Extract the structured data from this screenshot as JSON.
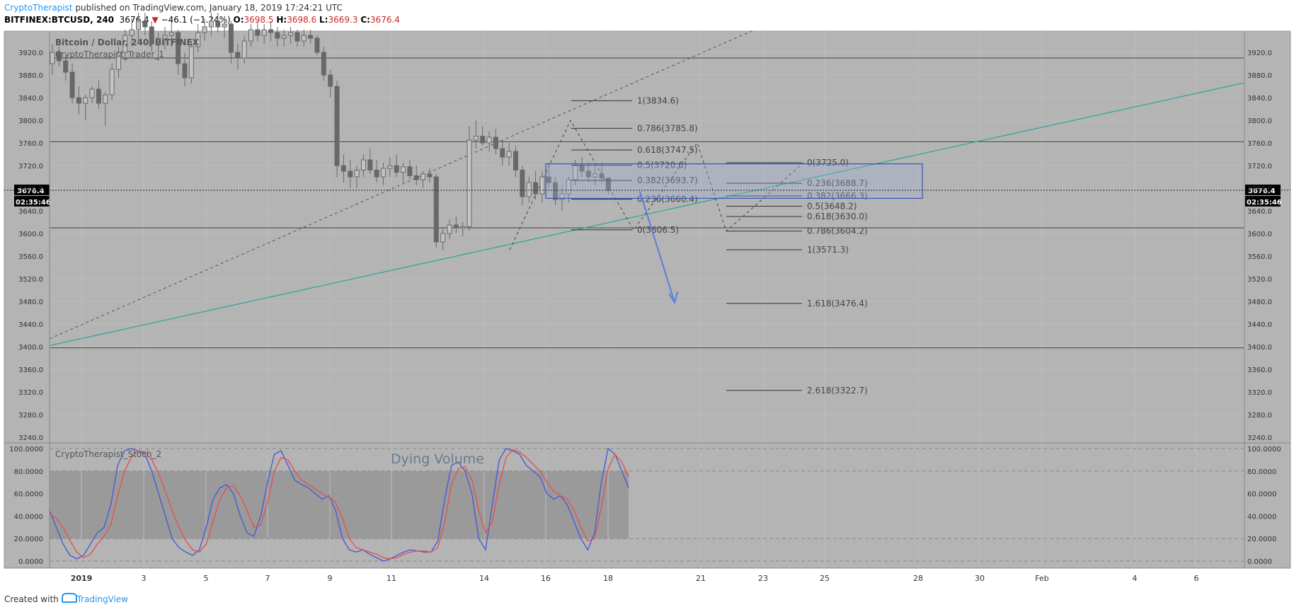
{
  "header": {
    "author": "CryptoTherapist",
    "published_text": "published on TradingView.com, January 18, 2019 17:24:21 UTC",
    "symbol": "BITFINEX:BTCUSD, 240",
    "last": "3676.4",
    "change_arrow": "▼",
    "change": "−46.1 (−1.24%)",
    "o_label": "O:",
    "o": "3698.5",
    "h_label": "H:",
    "h": "3698.6",
    "l_label": "L:",
    "l": "3669.3",
    "c_label": "C:",
    "c": "3676.4"
  },
  "footer": {
    "created_with": "Created with",
    "tradingview": "TradingView"
  },
  "colors": {
    "chart_bg": "#b4b4b4",
    "stoch_band": "#9a9a9a",
    "trendline": "#26a69a",
    "arrow": "#5b7fd6",
    "k_line": "#4a5bd6",
    "d_line": "#e05454",
    "candle": "#686868",
    "author_link": "#2196f3",
    "down": "#c62828"
  },
  "chart_data": [
    {
      "type": "candlestick",
      "title": "Bitcoin / Dollar, 240, BITFINEX",
      "indicator_label": "CryptoTherapist_Trader_1",
      "ylim": [
        3240,
        3960
      ],
      "y_ticks": [
        "3920.0",
        "3880.0",
        "3840.0",
        "3800.0",
        "3760.0",
        "3720.0",
        "3680.0",
        "3640.0",
        "3600.0",
        "3560.0",
        "3520.0",
        "3480.0",
        "3440.0",
        "3400.0",
        "3360.0",
        "3320.0",
        "3280.0",
        "3240.0"
      ],
      "x_ticks": [
        "2019",
        "3",
        "5",
        "7",
        "9",
        "11",
        "14",
        "16",
        "18",
        "21",
        "23",
        "25",
        "28",
        "30",
        "Feb",
        "4",
        "6"
      ],
      "last_price": "3676.4",
      "countdown": "02:35:46",
      "horizontal_levels": [
        3910,
        3762,
        3610,
        3398
      ],
      "fib_retracement_1": [
        {
          "level": "1",
          "value": "3834.6"
        },
        {
          "level": "0.786",
          "value": "3785.8"
        },
        {
          "level": "0.618",
          "value": "3747.5"
        },
        {
          "level": "0.5",
          "value": "3720.6"
        },
        {
          "level": "0.382",
          "value": "3693.7"
        },
        {
          "level": "0.236",
          "value": "3660.4"
        },
        {
          "level": "0",
          "value": "3606.5"
        }
      ],
      "fib_retracement_2": [
        {
          "level": "0",
          "value": "3725.0"
        },
        {
          "level": "0.236",
          "value": "3688.7"
        },
        {
          "level": "0.382",
          "value": "3666.3"
        },
        {
          "level": "0.5",
          "value": "3648.2"
        },
        {
          "level": "0.618",
          "value": "3630.0"
        },
        {
          "level": "0.786",
          "value": "3604.2"
        },
        {
          "level": "1",
          "value": "3571.3"
        },
        {
          "level": "1.618",
          "value": "3476.4"
        },
        {
          "level": "2.618",
          "value": "3322.7"
        }
      ],
      "candles": [
        [
          3900,
          3935,
          3880,
          3920
        ],
        [
          3920,
          3930,
          3895,
          3905
        ],
        [
          3905,
          3915,
          3870,
          3885
        ],
        [
          3885,
          3900,
          3830,
          3840
        ],
        [
          3840,
          3860,
          3810,
          3830
        ],
        [
          3830,
          3845,
          3800,
          3840
        ],
        [
          3840,
          3860,
          3830,
          3855
        ],
        [
          3855,
          3870,
          3820,
          3830
        ],
        [
          3830,
          3850,
          3790,
          3845
        ],
        [
          3845,
          3900,
          3835,
          3890
        ],
        [
          3890,
          3930,
          3875,
          3920
        ],
        [
          3920,
          3960,
          3905,
          3950
        ],
        [
          3950,
          3980,
          3930,
          3960
        ],
        [
          3960,
          3990,
          3940,
          3975
        ],
        [
          3975,
          3990,
          3950,
          3965
        ],
        [
          3965,
          3975,
          3920,
          3935
        ],
        [
          3935,
          3955,
          3905,
          3945
        ],
        [
          3945,
          3965,
          3925,
          3950
        ],
        [
          3950,
          3975,
          3930,
          3955
        ],
        [
          3955,
          3960,
          3880,
          3900
        ],
        [
          3900,
          3920,
          3860,
          3875
        ],
        [
          3875,
          3940,
          3865,
          3930
        ],
        [
          3930,
          3970,
          3920,
          3955
        ],
        [
          3955,
          3980,
          3940,
          3965
        ],
        [
          3965,
          3990,
          3950,
          3975
        ],
        [
          3975,
          3990,
          3955,
          3965
        ],
        [
          3965,
          3980,
          3945,
          3970
        ],
        [
          3970,
          3975,
          3900,
          3920
        ],
        [
          3920,
          3935,
          3890,
          3910
        ],
        [
          3910,
          3950,
          3900,
          3940
        ],
        [
          3940,
          3970,
          3930,
          3960
        ],
        [
          3960,
          3975,
          3940,
          3950
        ],
        [
          3950,
          3970,
          3935,
          3960
        ],
        [
          3960,
          3975,
          3940,
          3955
        ],
        [
          3955,
          3965,
          3930,
          3945
        ],
        [
          3945,
          3960,
          3930,
          3950
        ],
        [
          3950,
          3965,
          3935,
          3955
        ],
        [
          3955,
          3960,
          3930,
          3940
        ],
        [
          3940,
          3960,
          3930,
          3950
        ],
        [
          3950,
          3960,
          3935,
          3945
        ],
        [
          3945,
          3950,
          3915,
          3920
        ],
        [
          3920,
          3930,
          3870,
          3880
        ],
        [
          3880,
          3890,
          3840,
          3860
        ],
        [
          3860,
          3870,
          3700,
          3720
        ],
        [
          3720,
          3740,
          3690,
          3710
        ],
        [
          3710,
          3730,
          3680,
          3700
        ],
        [
          3700,
          3720,
          3680,
          3712
        ],
        [
          3712,
          3740,
          3700,
          3730
        ],
        [
          3730,
          3750,
          3705,
          3712
        ],
        [
          3712,
          3730,
          3690,
          3700
        ],
        [
          3700,
          3725,
          3685,
          3715
        ],
        [
          3715,
          3735,
          3700,
          3720
        ],
        [
          3720,
          3740,
          3700,
          3708
        ],
        [
          3708,
          3725,
          3690,
          3718
        ],
        [
          3718,
          3730,
          3695,
          3702
        ],
        [
          3702,
          3720,
          3685,
          3695
        ],
        [
          3695,
          3710,
          3680,
          3705
        ],
        [
          3705,
          3715,
          3690,
          3700
        ],
        [
          3700,
          3705,
          3575,
          3585
        ],
        [
          3585,
          3610,
          3570,
          3600
        ],
        [
          3600,
          3625,
          3590,
          3615
        ],
        [
          3615,
          3630,
          3600,
          3610
        ],
        [
          3610,
          3620,
          3595,
          3612
        ],
        [
          3612,
          3790,
          3605,
          3765
        ],
        [
          3765,
          3800,
          3750,
          3772
        ],
        [
          3772,
          3790,
          3755,
          3760
        ],
        [
          3760,
          3780,
          3745,
          3770
        ],
        [
          3770,
          3785,
          3740,
          3750
        ],
        [
          3750,
          3765,
          3720,
          3735
        ],
        [
          3735,
          3760,
          3720,
          3745
        ],
        [
          3745,
          3755,
          3700,
          3712
        ],
        [
          3712,
          3720,
          3650,
          3665
        ],
        [
          3665,
          3700,
          3655,
          3690
        ],
        [
          3690,
          3710,
          3660,
          3670
        ],
        [
          3670,
          3710,
          3655,
          3700
        ],
        [
          3700,
          3725,
          3680,
          3690
        ],
        [
          3690,
          3700,
          3650,
          3660
        ],
        [
          3660,
          3685,
          3640,
          3670
        ],
        [
          3670,
          3700,
          3655,
          3695
        ],
        [
          3695,
          3730,
          3685,
          3720
        ],
        [
          3720,
          3735,
          3700,
          3710
        ],
        [
          3710,
          3725,
          3690,
          3700
        ],
        [
          3700,
          3720,
          3685,
          3705
        ],
        [
          3705,
          3725,
          3690,
          3698
        ],
        [
          3698,
          3699,
          3669,
          3676
        ]
      ]
    },
    {
      "type": "line",
      "title": "CryptoTherapist_Stoch_2",
      "annotation": "Dying Volume",
      "ylim": [
        0,
        100
      ],
      "y_ticks": [
        "100.0000",
        "80.0000",
        "60.0000",
        "40.0000",
        "20.0000",
        "0.0000"
      ],
      "band": [
        20,
        80
      ],
      "series": [
        {
          "values": [
            45,
            30,
            15,
            5,
            2,
            5,
            15,
            25,
            30,
            50,
            85,
            98,
            100,
            98,
            95,
            80,
            60,
            40,
            20,
            12,
            8,
            5,
            10,
            30,
            55,
            65,
            68,
            60,
            40,
            25,
            22,
            40,
            70,
            95,
            98,
            85,
            72,
            68,
            65,
            60,
            55,
            58,
            45,
            20,
            10,
            8,
            10,
            6,
            3,
            0,
            2,
            5,
            8,
            10,
            9,
            8,
            8,
            18,
            55,
            85,
            88,
            80,
            60,
            20,
            10,
            50,
            90,
            100,
            98,
            95,
            85,
            80,
            75,
            60,
            55,
            58,
            50,
            35,
            20,
            10,
            25,
            70,
            100,
            95,
            80,
            65
          ]
        },
        {
          "values": [
            42,
            38,
            30,
            18,
            8,
            3,
            6,
            15,
            22,
            32,
            58,
            80,
            92,
            98,
            97,
            90,
            78,
            62,
            45,
            30,
            18,
            10,
            8,
            15,
            35,
            55,
            65,
            67,
            58,
            45,
            30,
            32,
            52,
            80,
            92,
            90,
            80,
            72,
            68,
            64,
            60,
            57,
            52,
            38,
            20,
            12,
            10,
            8,
            6,
            3,
            2,
            3,
            6,
            8,
            9,
            9,
            8,
            12,
            35,
            68,
            82,
            84,
            72,
            45,
            25,
            35,
            68,
            92,
            99,
            97,
            92,
            86,
            80,
            70,
            62,
            58,
            55,
            45,
            30,
            18,
            20,
            48,
            82,
            95,
            88,
            75
          ]
        }
      ]
    }
  ]
}
